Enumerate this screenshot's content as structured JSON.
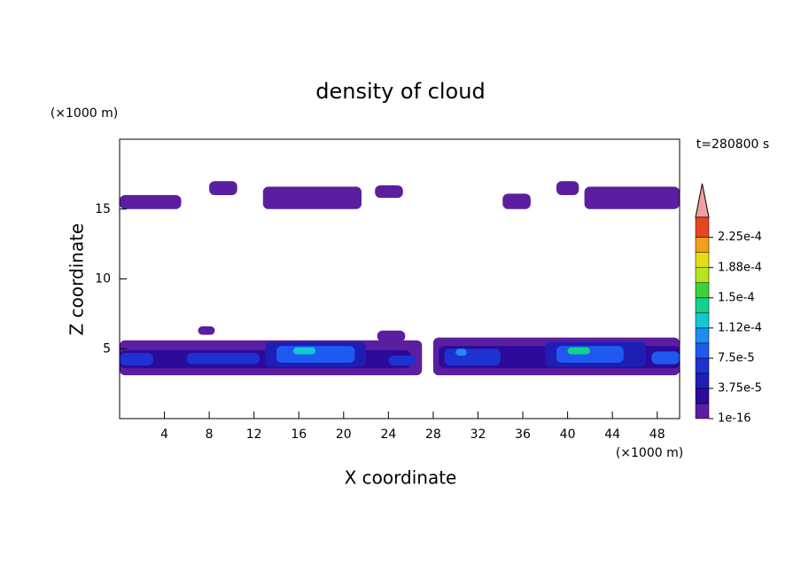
{
  "chart_data": {
    "type": "contour",
    "title": "density of cloud",
    "x_label": "X coordinate",
    "y_label": "Z coordinate",
    "x_unit": "(×1000 m)",
    "y_unit": "(×1000 m)",
    "annotation": "t=280800 s",
    "xlim": [
      0,
      50
    ],
    "ylim": [
      0,
      20
    ],
    "xticks": [
      4,
      8,
      12,
      16,
      20,
      24,
      28,
      32,
      36,
      40,
      44,
      48
    ],
    "yticks": [
      5,
      10,
      15
    ],
    "colorbar": {
      "clim": [
        1e-16,
        0.00025
      ],
      "levels": [
        1e-16,
        1.875e-05,
        3.75e-05,
        5.625e-05,
        7.5e-05,
        9.375e-05,
        0.0001125,
        0.00013125,
        0.00015,
        0.00016875,
        0.0001875,
        0.00020625,
        0.000225
      ],
      "colors": [
        "#5c1ea0",
        "#2c0a9a",
        "#1e1eb4",
        "#1e32d2",
        "#1e5af0",
        "#1e8cf0",
        "#14c8d2",
        "#14d28c",
        "#3cd23c",
        "#b4e61e",
        "#e6dc14",
        "#f0a01e",
        "#e6461e"
      ],
      "ticks": [
        {
          "value": 1e-16,
          "label": "1e-16"
        },
        {
          "value": 3.75e-05,
          "label": "3.75e-5"
        },
        {
          "value": 7.5e-05,
          "label": "7.5e-5"
        },
        {
          "value": 0.0001125,
          "label": "1.12e-4"
        },
        {
          "value": 0.00015,
          "label": "1.5e-4"
        },
        {
          "value": 0.0001875,
          "label": "1.88e-4"
        },
        {
          "value": 0.000225,
          "label": "2.25e-4"
        }
      ]
    },
    "patches": [
      {
        "x": [
          0,
          5.5
        ],
        "z": [
          15,
          16
        ],
        "level": 0
      },
      {
        "x": [
          8,
          10.5
        ],
        "z": [
          16,
          17
        ],
        "level": 0
      },
      {
        "x": [
          12.8,
          21.6
        ],
        "z": [
          15,
          16.6
        ],
        "level": 0
      },
      {
        "x": [
          22.8,
          25.3
        ],
        "z": [
          15.8,
          16.7
        ],
        "level": 0
      },
      {
        "x": [
          34.2,
          36.7
        ],
        "z": [
          15,
          16.1
        ],
        "level": 0
      },
      {
        "x": [
          39,
          41
        ],
        "z": [
          16,
          17
        ],
        "level": 0
      },
      {
        "x": [
          41.5,
          50
        ],
        "z": [
          15,
          16.6
        ],
        "level": 0
      },
      {
        "x": [
          7,
          8.5
        ],
        "z": [
          6,
          6.6
        ],
        "level": 0
      },
      {
        "x": [
          0,
          27
        ],
        "z": [
          3.1,
          5.6
        ],
        "level": 0
      },
      {
        "x": [
          28,
          50
        ],
        "z": [
          3.1,
          5.8
        ],
        "level": 0
      },
      {
        "x": [
          23,
          25.5
        ],
        "z": [
          5.5,
          6.3
        ],
        "level": 0
      },
      {
        "x": [
          0,
          26
        ],
        "z": [
          3.6,
          4.9
        ],
        "level": 1
      },
      {
        "x": [
          28.5,
          50
        ],
        "z": [
          3.6,
          5.2
        ],
        "level": 1
      },
      {
        "x": [
          0,
          3
        ],
        "z": [
          3.8,
          4.7
        ],
        "level": 3
      },
      {
        "x": [
          6,
          12.5
        ],
        "z": [
          3.9,
          4.7
        ],
        "level": 3
      },
      {
        "x": [
          13,
          22
        ],
        "z": [
          3.7,
          5.5
        ],
        "level": 2
      },
      {
        "x": [
          14,
          21
        ],
        "z": [
          4,
          5.2
        ],
        "level": 4
      },
      {
        "x": [
          15.5,
          17.5
        ],
        "z": [
          4.6,
          5.1
        ],
        "level": 6
      },
      {
        "x": [
          24,
          26.5
        ],
        "z": [
          3.8,
          4.5
        ],
        "level": 3
      },
      {
        "x": [
          29,
          34
        ],
        "z": [
          3.8,
          5
        ],
        "level": 3
      },
      {
        "x": [
          30,
          31
        ],
        "z": [
          4.5,
          5
        ],
        "level": 5
      },
      {
        "x": [
          38,
          47
        ],
        "z": [
          3.7,
          5.5
        ],
        "level": 2
      },
      {
        "x": [
          39,
          45
        ],
        "z": [
          4,
          5.2
        ],
        "level": 4
      },
      {
        "x": [
          40,
          42
        ],
        "z": [
          4.6,
          5.1
        ],
        "level": 7
      },
      {
        "x": [
          47.5,
          50
        ],
        "z": [
          3.9,
          4.8
        ],
        "level": 4
      }
    ]
  }
}
